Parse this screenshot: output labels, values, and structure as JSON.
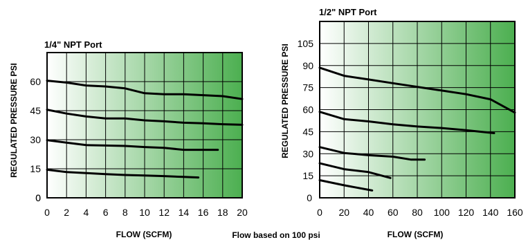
{
  "note": "Flow based on 100 psi",
  "colors": {
    "gradient_start": "#ffffff",
    "gradient_end": "#4caf50",
    "grid": "#000000",
    "line": "#000000"
  },
  "chart_data": [
    {
      "type": "line",
      "title": "1/4\" NPT Port",
      "xlabel": "FLOW (SCFM)",
      "ylabel": "REGULATED PRESSURE PSI",
      "xlim": [
        0,
        20
      ],
      "ylim": [
        0,
        75
      ],
      "xticks": [
        0,
        2,
        4,
        6,
        8,
        10,
        12,
        14,
        16,
        18,
        20
      ],
      "yticks": [
        0,
        15,
        30,
        45,
        60
      ],
      "grid": true,
      "background": "white-to-green horizontal gradient",
      "series": [
        {
          "x": [
            0,
            2,
            4,
            6,
            8,
            10,
            12,
            14,
            16,
            18,
            20
          ],
          "y": [
            60.5,
            59.5,
            58,
            57.5,
            56.5,
            54,
            53.5,
            53.5,
            53,
            52.5,
            51
          ]
        },
        {
          "x": [
            0,
            2,
            4,
            6,
            8,
            10,
            12,
            14,
            16,
            18,
            20
          ],
          "y": [
            45.5,
            43.5,
            42,
            41,
            41,
            40,
            39.5,
            38.8,
            38.5,
            38,
            37.7
          ]
        },
        {
          "x": [
            0,
            2,
            4,
            6,
            8,
            10,
            12,
            14,
            17.5
          ],
          "y": [
            29.8,
            28.5,
            27.2,
            27,
            26.8,
            26.2,
            25.8,
            24.8,
            24.8
          ]
        },
        {
          "x": [
            0,
            2,
            4,
            6,
            8,
            10,
            12,
            14,
            15.5
          ],
          "y": [
            14.5,
            13.3,
            12.8,
            12.2,
            11.8,
            11.5,
            11.2,
            10.8,
            10.5
          ]
        }
      ]
    },
    {
      "type": "line",
      "title": "1/2\" NPT Port",
      "xlabel": "FLOW (SCFM)",
      "ylabel": "REGULATED PRESSURE PSI",
      "xlim": [
        0,
        160
      ],
      "ylim": [
        0,
        120
      ],
      "xticks": [
        0,
        20,
        40,
        60,
        80,
        100,
        120,
        140,
        160
      ],
      "yticks": [
        15,
        30,
        45,
        60,
        75,
        90,
        105
      ],
      "ytick_zero_label": "0",
      "grid": true,
      "background": "white-to-green horizontal gradient",
      "series": [
        {
          "x": [
            0,
            20,
            40,
            60,
            80,
            100,
            120,
            140,
            160
          ],
          "y": [
            88.5,
            83,
            80.5,
            78,
            75.5,
            73,
            70.5,
            67,
            58
          ]
        },
        {
          "x": [
            0,
            20,
            40,
            60,
            80,
            100,
            120,
            143
          ],
          "y": [
            58.5,
            53.5,
            52,
            50,
            48.5,
            47.5,
            46,
            44
          ]
        },
        {
          "x": [
            0,
            20,
            40,
            60,
            75,
            86
          ],
          "y": [
            34.5,
            30.5,
            29,
            28,
            26,
            26
          ]
        },
        {
          "x": [
            0,
            20,
            40,
            58
          ],
          "y": [
            23.5,
            19.5,
            17.5,
            13.5
          ]
        },
        {
          "x": [
            0,
            20,
            43
          ],
          "y": [
            12,
            8.5,
            5
          ]
        }
      ]
    }
  ]
}
